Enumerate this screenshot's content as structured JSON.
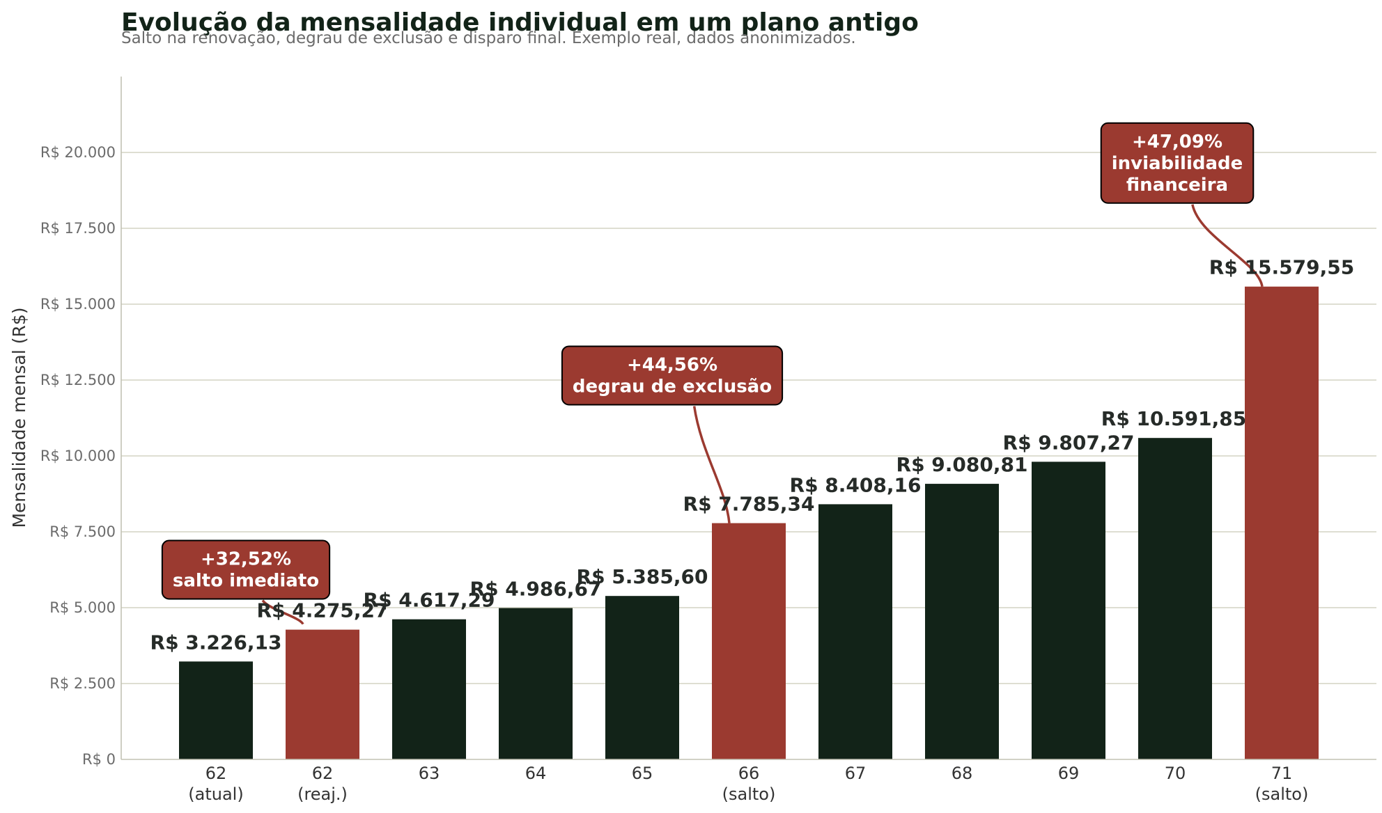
{
  "colors": {
    "dark_bar": "#122318",
    "highlight_bar": "#9b3a30",
    "grid": "#d3d3c4",
    "axis": "#c2c2b4",
    "annotation_bg": "#9b3a30",
    "annotation_text": "#ffffff"
  },
  "chart_data": {
    "type": "bar",
    "title": "Evolução da mensalidade individual em um plano antigo",
    "subtitle": "Salto na renovação, degrau de exclusão e disparo final. Exemplo real, dados anonimizados.",
    "xlabel": "",
    "ylabel": "Mensalidade mensal (R$)",
    "ylim": [
      0,
      22500
    ],
    "grid": true,
    "y_ticks": [
      0,
      2500,
      5000,
      7500,
      10000,
      12500,
      15000,
      17500,
      20000
    ],
    "y_tick_labels": [
      "R$ 0",
      "R$ 2.500",
      "R$ 5.000",
      "R$ 7.500",
      "R$ 10.000",
      "R$ 12.500",
      "R$ 15.000",
      "R$ 17.500",
      "R$ 20.000"
    ],
    "categories": [
      [
        "62",
        "(atual)"
      ],
      [
        "62",
        "(reaj.)"
      ],
      [
        "63"
      ],
      [
        "64"
      ],
      [
        "65"
      ],
      [
        "66",
        "(salto)"
      ],
      [
        "67"
      ],
      [
        "68"
      ],
      [
        "69"
      ],
      [
        "70"
      ],
      [
        "71",
        "(salto)"
      ]
    ],
    "values": [
      3226.13,
      4275.27,
      4617.29,
      4986.67,
      5385.6,
      7785.34,
      8408.16,
      9080.81,
      9807.27,
      10591.85,
      15579.55
    ],
    "value_labels": [
      "R$ 3.226,13",
      "R$ 4.275,27",
      "R$ 4.617,29",
      "R$ 4.986,67",
      "R$ 5.385,60",
      "R$ 7.785,34",
      "R$ 8.408,16",
      "R$ 9.080,81",
      "R$ 9.807,27",
      "R$ 10.591,85",
      "R$ 15.579,55"
    ],
    "highlighted": [
      false,
      true,
      false,
      false,
      false,
      true,
      false,
      false,
      false,
      false,
      true
    ],
    "annotations": [
      {
        "bar_index": 1,
        "lines": [
          "+32,52%",
          "salto imediato"
        ],
        "box_y": 6250
      },
      {
        "bar_index": 5,
        "lines": [
          "+44,56%",
          "degrau de exclusão"
        ],
        "box_y": 12650
      },
      {
        "bar_index": 10,
        "lines": [
          "+47,09%",
          "inviabilidade",
          "financeira"
        ],
        "box_y": 19650
      }
    ]
  }
}
